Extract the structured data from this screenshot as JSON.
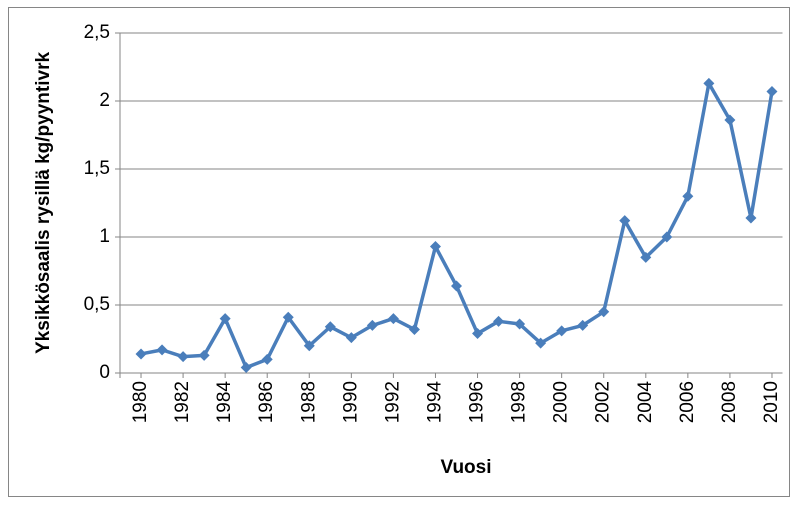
{
  "chart_data": {
    "type": "line",
    "x_label": "Vuosi",
    "y_label": "Yksikkösaalis rysillä kg/pyyntivrk",
    "x": [
      1980,
      1981,
      1982,
      1983,
      1984,
      1985,
      1986,
      1987,
      1988,
      1989,
      1990,
      1991,
      1992,
      1993,
      1994,
      1995,
      1996,
      1997,
      1998,
      1999,
      2000,
      2001,
      2002,
      2003,
      2004,
      2005,
      2006,
      2007,
      2008,
      2009,
      2010
    ],
    "series": [
      {
        "color": "#4a7ebb",
        "values": [
          0.14,
          0.17,
          0.12,
          0.13,
          0.4,
          0.04,
          0.1,
          0.41,
          0.2,
          0.34,
          0.26,
          0.35,
          0.4,
          0.32,
          0.93,
          0.64,
          0.29,
          0.38,
          0.36,
          0.22,
          0.31,
          0.35,
          0.45,
          1.12,
          0.85,
          1.0,
          1.3,
          2.13,
          1.86,
          1.14,
          2.07
        ]
      }
    ],
    "xlim": [
      1979.5,
      2010.5
    ],
    "xticks": [
      1980,
      1982,
      1984,
      1986,
      1988,
      1990,
      1992,
      1994,
      1996,
      1998,
      2000,
      2002,
      2004,
      2006,
      2008,
      2010
    ],
    "ylim": [
      0,
      2.5
    ],
    "yticks": [
      0,
      {
        "value": 0.5,
        "label": "0,5"
      },
      1,
      {
        "value": 1.5,
        "label": "1,5"
      },
      2,
      {
        "value": 2.5,
        "label": "2,5"
      }
    ],
    "grid": true
  }
}
